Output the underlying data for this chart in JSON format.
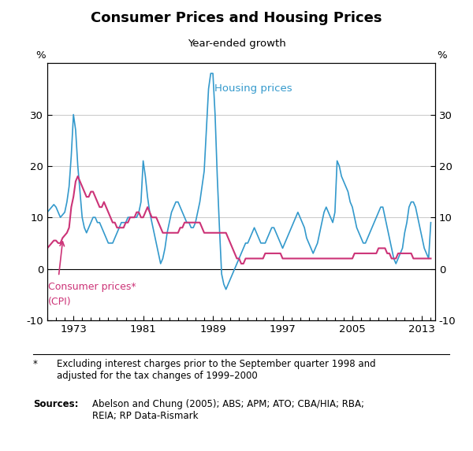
{
  "title": "Consumer Prices and Housing Prices",
  "subtitle": "Year-ended growth",
  "ylim": [
    -10,
    40
  ],
  "yticks": [
    -10,
    0,
    10,
    20,
    30
  ],
  "xlim": [
    1970.0,
    2014.5
  ],
  "xtick_labels": [
    "1973",
    "1981",
    "1989",
    "1997",
    "2005",
    "2013"
  ],
  "xtick_positions": [
    1973,
    1981,
    1989,
    1997,
    2005,
    2013
  ],
  "housing_color": "#3399CC",
  "cpi_color": "#CC3377",
  "footnote_star": "*",
  "footnote_text": "Excluding interest charges prior to the September quarter 1998 and\nadjusted for the tax changes of 1999–2000",
  "sources_label": "Sources:",
  "sources_text": "Abelson and Chung (2005); ABS; APM; ATO; CBA/HIA; RBA;\nREIA; RP Data-Rismark",
  "housing_label": "Housing prices",
  "cpi_label_line1": "Consumer prices*",
  "cpi_label_line2": "(CPI)",
  "housing_data": [
    [
      1970.0,
      11.0
    ],
    [
      1970.25,
      11.5
    ],
    [
      1970.5,
      12.0
    ],
    [
      1970.75,
      12.5
    ],
    [
      1971.0,
      12.0
    ],
    [
      1971.25,
      11.0
    ],
    [
      1971.5,
      10.0
    ],
    [
      1971.75,
      10.5
    ],
    [
      1972.0,
      11.0
    ],
    [
      1972.25,
      13.0
    ],
    [
      1972.5,
      16.0
    ],
    [
      1972.75,
      22.0
    ],
    [
      1973.0,
      30.0
    ],
    [
      1973.25,
      27.0
    ],
    [
      1973.5,
      20.0
    ],
    [
      1973.75,
      15.0
    ],
    [
      1974.0,
      10.0
    ],
    [
      1974.25,
      8.0
    ],
    [
      1974.5,
      7.0
    ],
    [
      1974.75,
      8.0
    ],
    [
      1975.0,
      9.0
    ],
    [
      1975.25,
      10.0
    ],
    [
      1975.5,
      10.0
    ],
    [
      1975.75,
      9.0
    ],
    [
      1976.0,
      9.0
    ],
    [
      1976.25,
      8.0
    ],
    [
      1976.5,
      7.0
    ],
    [
      1976.75,
      6.0
    ],
    [
      1977.0,
      5.0
    ],
    [
      1977.25,
      5.0
    ],
    [
      1977.5,
      5.0
    ],
    [
      1977.75,
      6.0
    ],
    [
      1978.0,
      7.0
    ],
    [
      1978.25,
      8.0
    ],
    [
      1978.5,
      9.0
    ],
    [
      1978.75,
      9.0
    ],
    [
      1979.0,
      9.0
    ],
    [
      1979.25,
      10.0
    ],
    [
      1979.5,
      10.0
    ],
    [
      1979.75,
      10.0
    ],
    [
      1980.0,
      10.0
    ],
    [
      1980.25,
      10.0
    ],
    [
      1980.5,
      11.0
    ],
    [
      1980.75,
      13.0
    ],
    [
      1981.0,
      21.0
    ],
    [
      1981.25,
      18.0
    ],
    [
      1981.5,
      14.0
    ],
    [
      1981.75,
      11.0
    ],
    [
      1982.0,
      9.0
    ],
    [
      1982.25,
      7.0
    ],
    [
      1982.5,
      5.0
    ],
    [
      1982.75,
      3.0
    ],
    [
      1983.0,
      1.0
    ],
    [
      1983.25,
      2.0
    ],
    [
      1983.5,
      4.0
    ],
    [
      1983.75,
      7.0
    ],
    [
      1984.0,
      9.0
    ],
    [
      1984.25,
      11.0
    ],
    [
      1984.5,
      12.0
    ],
    [
      1984.75,
      13.0
    ],
    [
      1985.0,
      13.0
    ],
    [
      1985.25,
      12.0
    ],
    [
      1985.5,
      11.0
    ],
    [
      1985.75,
      10.0
    ],
    [
      1986.0,
      9.0
    ],
    [
      1986.25,
      9.0
    ],
    [
      1986.5,
      8.0
    ],
    [
      1986.75,
      8.0
    ],
    [
      1987.0,
      9.0
    ],
    [
      1987.25,
      11.0
    ],
    [
      1987.5,
      13.0
    ],
    [
      1987.75,
      16.0
    ],
    [
      1988.0,
      19.0
    ],
    [
      1988.25,
      27.0
    ],
    [
      1988.5,
      35.0
    ],
    [
      1988.75,
      38.0
    ],
    [
      1989.0,
      38.0
    ],
    [
      1989.25,
      30.0
    ],
    [
      1989.5,
      18.0
    ],
    [
      1989.75,
      8.0
    ],
    [
      1990.0,
      -1.0
    ],
    [
      1990.25,
      -3.0
    ],
    [
      1990.5,
      -4.0
    ],
    [
      1990.75,
      -3.0
    ],
    [
      1991.0,
      -2.0
    ],
    [
      1991.25,
      -1.0
    ],
    [
      1991.5,
      0.0
    ],
    [
      1991.75,
      1.0
    ],
    [
      1992.0,
      2.0
    ],
    [
      1992.25,
      3.0
    ],
    [
      1992.5,
      4.0
    ],
    [
      1992.75,
      5.0
    ],
    [
      1993.0,
      5.0
    ],
    [
      1993.25,
      6.0
    ],
    [
      1993.5,
      7.0
    ],
    [
      1993.75,
      8.0
    ],
    [
      1994.0,
      7.0
    ],
    [
      1994.25,
      6.0
    ],
    [
      1994.5,
      5.0
    ],
    [
      1994.75,
      5.0
    ],
    [
      1995.0,
      5.0
    ],
    [
      1995.25,
      6.0
    ],
    [
      1995.5,
      7.0
    ],
    [
      1995.75,
      8.0
    ],
    [
      1996.0,
      8.0
    ],
    [
      1996.25,
      7.0
    ],
    [
      1996.5,
      6.0
    ],
    [
      1996.75,
      5.0
    ],
    [
      1997.0,
      4.0
    ],
    [
      1997.25,
      5.0
    ],
    [
      1997.5,
      6.0
    ],
    [
      1997.75,
      7.0
    ],
    [
      1998.0,
      8.0
    ],
    [
      1998.25,
      9.0
    ],
    [
      1998.5,
      10.0
    ],
    [
      1998.75,
      11.0
    ],
    [
      1999.0,
      10.0
    ],
    [
      1999.25,
      9.0
    ],
    [
      1999.5,
      8.0
    ],
    [
      1999.75,
      6.0
    ],
    [
      2000.0,
      5.0
    ],
    [
      2000.25,
      4.0
    ],
    [
      2000.5,
      3.0
    ],
    [
      2000.75,
      4.0
    ],
    [
      2001.0,
      5.0
    ],
    [
      2001.25,
      7.0
    ],
    [
      2001.5,
      9.0
    ],
    [
      2001.75,
      11.0
    ],
    [
      2002.0,
      12.0
    ],
    [
      2002.25,
      11.0
    ],
    [
      2002.5,
      10.0
    ],
    [
      2002.75,
      9.0
    ],
    [
      2003.0,
      11.0
    ],
    [
      2003.25,
      21.0
    ],
    [
      2003.5,
      20.0
    ],
    [
      2003.75,
      18.0
    ],
    [
      2004.0,
      17.0
    ],
    [
      2004.25,
      16.0
    ],
    [
      2004.5,
      15.0
    ],
    [
      2004.75,
      13.0
    ],
    [
      2005.0,
      12.0
    ],
    [
      2005.25,
      10.0
    ],
    [
      2005.5,
      8.0
    ],
    [
      2005.75,
      7.0
    ],
    [
      2006.0,
      6.0
    ],
    [
      2006.25,
      5.0
    ],
    [
      2006.5,
      5.0
    ],
    [
      2006.75,
      6.0
    ],
    [
      2007.0,
      7.0
    ],
    [
      2007.25,
      8.0
    ],
    [
      2007.5,
      9.0
    ],
    [
      2007.75,
      10.0
    ],
    [
      2008.0,
      11.0
    ],
    [
      2008.25,
      12.0
    ],
    [
      2008.5,
      12.0
    ],
    [
      2008.75,
      10.0
    ],
    [
      2009.0,
      8.0
    ],
    [
      2009.25,
      6.0
    ],
    [
      2009.5,
      4.0
    ],
    [
      2009.75,
      2.0
    ],
    [
      2010.0,
      1.0
    ],
    [
      2010.25,
      2.0
    ],
    [
      2010.5,
      3.0
    ],
    [
      2010.75,
      4.0
    ],
    [
      2011.0,
      7.0
    ],
    [
      2011.25,
      9.0
    ],
    [
      2011.5,
      12.0
    ],
    [
      2011.75,
      13.0
    ],
    [
      2012.0,
      13.0
    ],
    [
      2012.25,
      12.0
    ],
    [
      2012.5,
      10.0
    ],
    [
      2012.75,
      8.0
    ],
    [
      2013.0,
      6.0
    ],
    [
      2013.25,
      4.0
    ],
    [
      2013.5,
      3.0
    ],
    [
      2013.75,
      2.0
    ],
    [
      2014.0,
      9.0
    ]
  ],
  "cpi_data": [
    [
      1970.0,
      4.0
    ],
    [
      1970.25,
      4.5
    ],
    [
      1970.5,
      5.0
    ],
    [
      1970.75,
      5.5
    ],
    [
      1971.0,
      5.5
    ],
    [
      1971.25,
      5.0
    ],
    [
      1971.5,
      5.0
    ],
    [
      1971.75,
      6.0
    ],
    [
      1972.0,
      6.5
    ],
    [
      1972.25,
      7.0
    ],
    [
      1972.5,
      8.0
    ],
    [
      1972.75,
      12.0
    ],
    [
      1973.0,
      14.0
    ],
    [
      1973.25,
      17.0
    ],
    [
      1973.5,
      18.0
    ],
    [
      1973.75,
      17.0
    ],
    [
      1974.0,
      16.0
    ],
    [
      1974.25,
      15.0
    ],
    [
      1974.5,
      14.0
    ],
    [
      1974.75,
      14.0
    ],
    [
      1975.0,
      15.0
    ],
    [
      1975.25,
      15.0
    ],
    [
      1975.5,
      14.0
    ],
    [
      1975.75,
      13.0
    ],
    [
      1976.0,
      12.0
    ],
    [
      1976.25,
      12.0
    ],
    [
      1976.5,
      13.0
    ],
    [
      1976.75,
      12.0
    ],
    [
      1977.0,
      11.0
    ],
    [
      1977.25,
      10.0
    ],
    [
      1977.5,
      9.0
    ],
    [
      1977.75,
      9.0
    ],
    [
      1978.0,
      8.0
    ],
    [
      1978.25,
      8.0
    ],
    [
      1978.5,
      8.0
    ],
    [
      1978.75,
      8.0
    ],
    [
      1979.0,
      9.0
    ],
    [
      1979.25,
      9.0
    ],
    [
      1979.5,
      10.0
    ],
    [
      1979.75,
      10.0
    ],
    [
      1980.0,
      10.0
    ],
    [
      1980.25,
      11.0
    ],
    [
      1980.5,
      11.0
    ],
    [
      1980.75,
      10.0
    ],
    [
      1981.0,
      10.0
    ],
    [
      1981.25,
      11.0
    ],
    [
      1981.5,
      12.0
    ],
    [
      1981.75,
      11.0
    ],
    [
      1982.0,
      10.0
    ],
    [
      1982.25,
      10.0
    ],
    [
      1982.5,
      10.0
    ],
    [
      1982.75,
      9.0
    ],
    [
      1983.0,
      8.0
    ],
    [
      1983.25,
      7.0
    ],
    [
      1983.5,
      7.0
    ],
    [
      1983.75,
      7.0
    ],
    [
      1984.0,
      7.0
    ],
    [
      1984.25,
      7.0
    ],
    [
      1984.5,
      7.0
    ],
    [
      1984.75,
      7.0
    ],
    [
      1985.0,
      7.0
    ],
    [
      1985.25,
      8.0
    ],
    [
      1985.5,
      8.0
    ],
    [
      1985.75,
      9.0
    ],
    [
      1986.0,
      9.0
    ],
    [
      1986.25,
      9.0
    ],
    [
      1986.5,
      9.0
    ],
    [
      1986.75,
      9.0
    ],
    [
      1987.0,
      9.0
    ],
    [
      1987.25,
      9.0
    ],
    [
      1987.5,
      9.0
    ],
    [
      1987.75,
      8.0
    ],
    [
      1988.0,
      7.0
    ],
    [
      1988.25,
      7.0
    ],
    [
      1988.5,
      7.0
    ],
    [
      1988.75,
      7.0
    ],
    [
      1989.0,
      7.0
    ],
    [
      1989.25,
      7.0
    ],
    [
      1989.5,
      7.0
    ],
    [
      1989.75,
      7.0
    ],
    [
      1990.0,
      7.0
    ],
    [
      1990.25,
      7.0
    ],
    [
      1990.5,
      7.0
    ],
    [
      1990.75,
      6.0
    ],
    [
      1991.0,
      5.0
    ],
    [
      1991.25,
      4.0
    ],
    [
      1991.5,
      3.0
    ],
    [
      1991.75,
      2.0
    ],
    [
      1992.0,
      2.0
    ],
    [
      1992.25,
      1.0
    ],
    [
      1992.5,
      1.0
    ],
    [
      1992.75,
      2.0
    ],
    [
      1993.0,
      2.0
    ],
    [
      1993.25,
      2.0
    ],
    [
      1993.5,
      2.0
    ],
    [
      1993.75,
      2.0
    ],
    [
      1994.0,
      2.0
    ],
    [
      1994.25,
      2.0
    ],
    [
      1994.5,
      2.0
    ],
    [
      1994.75,
      2.0
    ],
    [
      1995.0,
      3.0
    ],
    [
      1995.25,
      3.0
    ],
    [
      1995.5,
      3.0
    ],
    [
      1995.75,
      3.0
    ],
    [
      1996.0,
      3.0
    ],
    [
      1996.25,
      3.0
    ],
    [
      1996.5,
      3.0
    ],
    [
      1996.75,
      3.0
    ],
    [
      1997.0,
      2.0
    ],
    [
      1997.25,
      2.0
    ],
    [
      1997.5,
      2.0
    ],
    [
      1997.75,
      2.0
    ],
    [
      1998.0,
      2.0
    ],
    [
      1998.25,
      2.0
    ],
    [
      1998.5,
      2.0
    ],
    [
      1998.75,
      2.0
    ],
    [
      1999.0,
      2.0
    ],
    [
      1999.25,
      2.0
    ],
    [
      1999.5,
      2.0
    ],
    [
      1999.75,
      2.0
    ],
    [
      2000.0,
      2.0
    ],
    [
      2000.25,
      2.0
    ],
    [
      2000.5,
      2.0
    ],
    [
      2000.75,
      2.0
    ],
    [
      2001.0,
      2.0
    ],
    [
      2001.25,
      2.0
    ],
    [
      2001.5,
      2.0
    ],
    [
      2001.75,
      2.0
    ],
    [
      2002.0,
      2.0
    ],
    [
      2002.25,
      2.0
    ],
    [
      2002.5,
      2.0
    ],
    [
      2002.75,
      2.0
    ],
    [
      2003.0,
      2.0
    ],
    [
      2003.25,
      2.0
    ],
    [
      2003.5,
      2.0
    ],
    [
      2003.75,
      2.0
    ],
    [
      2004.0,
      2.0
    ],
    [
      2004.25,
      2.0
    ],
    [
      2004.5,
      2.0
    ],
    [
      2004.75,
      2.0
    ],
    [
      2005.0,
      2.0
    ],
    [
      2005.25,
      3.0
    ],
    [
      2005.5,
      3.0
    ],
    [
      2005.75,
      3.0
    ],
    [
      2006.0,
      3.0
    ],
    [
      2006.25,
      3.0
    ],
    [
      2006.5,
      3.0
    ],
    [
      2006.75,
      3.0
    ],
    [
      2007.0,
      3.0
    ],
    [
      2007.25,
      3.0
    ],
    [
      2007.5,
      3.0
    ],
    [
      2007.75,
      3.0
    ],
    [
      2008.0,
      4.0
    ],
    [
      2008.25,
      4.0
    ],
    [
      2008.5,
      4.0
    ],
    [
      2008.75,
      4.0
    ],
    [
      2009.0,
      3.0
    ],
    [
      2009.25,
      3.0
    ],
    [
      2009.5,
      2.0
    ],
    [
      2009.75,
      2.0
    ],
    [
      2010.0,
      2.0
    ],
    [
      2010.25,
      3.0
    ],
    [
      2010.5,
      3.0
    ],
    [
      2010.75,
      3.0
    ],
    [
      2011.0,
      3.0
    ],
    [
      2011.25,
      3.0
    ],
    [
      2011.5,
      3.0
    ],
    [
      2011.75,
      3.0
    ],
    [
      2012.0,
      2.0
    ],
    [
      2012.25,
      2.0
    ],
    [
      2012.5,
      2.0
    ],
    [
      2012.75,
      2.0
    ],
    [
      2013.0,
      2.0
    ],
    [
      2013.25,
      2.0
    ],
    [
      2013.5,
      2.0
    ],
    [
      2013.75,
      2.0
    ],
    [
      2014.0,
      2.0
    ]
  ]
}
